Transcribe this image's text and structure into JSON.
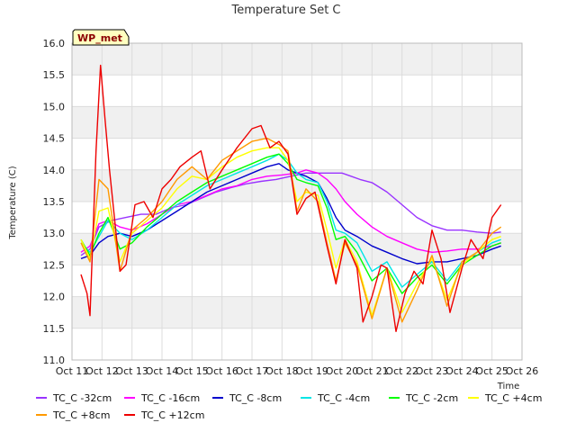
{
  "chart_data": {
    "type": "line",
    "title": "Temperature Set C",
    "xlabel": "Time",
    "ylabel": "Temperature (C)",
    "badge": "WP_met",
    "ylim": [
      11.0,
      16.0
    ],
    "xlim": [
      11,
      26
    ],
    "y_ticks": [
      "11.0",
      "11.5",
      "12.0",
      "12.5",
      "13.0",
      "13.5",
      "14.0",
      "14.5",
      "15.0",
      "15.5",
      "16.0"
    ],
    "x_ticks": [
      "Oct 11",
      "Oct 12",
      "Oct 13",
      "Oct 14",
      "Oct 15",
      "Oct 16",
      "Oct 17",
      "Oct 18",
      "Oct 19",
      "Oct 20",
      "Oct 21",
      "Oct 22",
      "Oct 23",
      "Oct 24",
      "Oct 25",
      "Oct 26"
    ],
    "grid": true,
    "legend_position": "bottom",
    "series": [
      {
        "name": "TC_C -32cm",
        "color": "#9933ff",
        "points": [
          [
            11.3,
            12.65
          ],
          [
            11.6,
            12.75
          ],
          [
            11.9,
            13.1
          ],
          [
            12.3,
            13.2
          ],
          [
            12.8,
            13.25
          ],
          [
            13.3,
            13.3
          ],
          [
            13.8,
            13.3
          ],
          [
            14.3,
            13.4
          ],
          [
            14.8,
            13.45
          ],
          [
            15.3,
            13.55
          ],
          [
            15.8,
            13.65
          ],
          [
            16.3,
            13.72
          ],
          [
            16.8,
            13.78
          ],
          [
            17.3,
            13.82
          ],
          [
            17.8,
            13.85
          ],
          [
            18.3,
            13.9
          ],
          [
            18.8,
            13.95
          ],
          [
            19.2,
            13.95
          ],
          [
            19.6,
            13.95
          ],
          [
            20.0,
            13.95
          ],
          [
            20.3,
            13.9
          ],
          [
            20.6,
            13.85
          ],
          [
            21.0,
            13.8
          ],
          [
            21.5,
            13.65
          ],
          [
            22.0,
            13.45
          ],
          [
            22.5,
            13.25
          ],
          [
            23.0,
            13.12
          ],
          [
            23.5,
            13.05
          ],
          [
            24.0,
            13.05
          ],
          [
            24.5,
            13.02
          ],
          [
            25.0,
            13.0
          ],
          [
            25.3,
            13.02
          ]
        ]
      },
      {
        "name": "TC_C -16cm",
        "color": "#ff00ff",
        "points": [
          [
            11.3,
            12.7
          ],
          [
            11.6,
            12.8
          ],
          [
            11.9,
            13.15
          ],
          [
            12.2,
            13.2
          ],
          [
            12.6,
            13.1
          ],
          [
            13.0,
            13.05
          ],
          [
            13.5,
            13.15
          ],
          [
            14.0,
            13.3
          ],
          [
            14.5,
            13.45
          ],
          [
            15.0,
            13.5
          ],
          [
            15.5,
            13.6
          ],
          [
            16.0,
            13.7
          ],
          [
            16.5,
            13.75
          ],
          [
            17.0,
            13.85
          ],
          [
            17.5,
            13.9
          ],
          [
            18.0,
            13.92
          ],
          [
            18.5,
            13.95
          ],
          [
            18.8,
            14.0
          ],
          [
            19.2,
            13.95
          ],
          [
            19.5,
            13.85
          ],
          [
            19.8,
            13.7
          ],
          [
            20.1,
            13.5
          ],
          [
            20.5,
            13.3
          ],
          [
            21.0,
            13.1
          ],
          [
            21.5,
            12.95
          ],
          [
            22.0,
            12.85
          ],
          [
            22.5,
            12.75
          ],
          [
            23.0,
            12.7
          ],
          [
            23.5,
            12.72
          ],
          [
            24.0,
            12.75
          ],
          [
            24.5,
            12.75
          ],
          [
            25.0,
            12.8
          ],
          [
            25.3,
            12.85
          ]
        ]
      },
      {
        "name": "TC_C -8cm",
        "color": "#0000cc",
        "points": [
          [
            11.3,
            12.6
          ],
          [
            11.6,
            12.65
          ],
          [
            11.9,
            12.85
          ],
          [
            12.2,
            12.95
          ],
          [
            12.6,
            13.0
          ],
          [
            13.0,
            12.95
          ],
          [
            13.5,
            13.05
          ],
          [
            14.0,
            13.2
          ],
          [
            14.5,
            13.35
          ],
          [
            15.0,
            13.5
          ],
          [
            15.5,
            13.65
          ],
          [
            16.0,
            13.75
          ],
          [
            16.5,
            13.85
          ],
          [
            17.0,
            13.95
          ],
          [
            17.5,
            14.05
          ],
          [
            17.9,
            14.1
          ],
          [
            18.2,
            14.0
          ],
          [
            18.5,
            13.95
          ],
          [
            18.8,
            13.9
          ],
          [
            19.2,
            13.8
          ],
          [
            19.5,
            13.55
          ],
          [
            19.8,
            13.25
          ],
          [
            20.1,
            13.05
          ],
          [
            20.5,
            12.95
          ],
          [
            21.0,
            12.8
          ],
          [
            21.5,
            12.7
          ],
          [
            22.0,
            12.6
          ],
          [
            22.5,
            12.52
          ],
          [
            23.0,
            12.55
          ],
          [
            23.5,
            12.55
          ],
          [
            24.0,
            12.6
          ],
          [
            24.5,
            12.65
          ],
          [
            25.0,
            12.75
          ],
          [
            25.3,
            12.8
          ]
        ]
      },
      {
        "name": "TC_C -4cm",
        "color": "#00e5e5",
        "points": [
          [
            11.3,
            12.85
          ],
          [
            11.6,
            12.7
          ],
          [
            11.9,
            12.95
          ],
          [
            12.2,
            13.2
          ],
          [
            12.6,
            13.0
          ],
          [
            13.0,
            12.9
          ],
          [
            13.5,
            13.05
          ],
          [
            14.0,
            13.25
          ],
          [
            14.5,
            13.45
          ],
          [
            15.0,
            13.6
          ],
          [
            15.5,
            13.75
          ],
          [
            16.0,
            13.85
          ],
          [
            16.5,
            13.95
          ],
          [
            17.0,
            14.05
          ],
          [
            17.5,
            14.15
          ],
          [
            17.9,
            14.25
          ],
          [
            18.2,
            14.15
          ],
          [
            18.5,
            13.95
          ],
          [
            18.8,
            13.85
          ],
          [
            19.2,
            13.8
          ],
          [
            19.5,
            13.5
          ],
          [
            19.8,
            13.05
          ],
          [
            20.1,
            13.0
          ],
          [
            20.5,
            12.85
          ],
          [
            21.0,
            12.4
          ],
          [
            21.5,
            12.55
          ],
          [
            22.0,
            12.15
          ],
          [
            22.5,
            12.35
          ],
          [
            23.0,
            12.55
          ],
          [
            23.5,
            12.25
          ],
          [
            24.0,
            12.55
          ],
          [
            24.5,
            12.7
          ],
          [
            25.0,
            12.85
          ],
          [
            25.3,
            12.9
          ]
        ]
      },
      {
        "name": "TC_C -2cm",
        "color": "#00ff00",
        "points": [
          [
            11.3,
            12.9
          ],
          [
            11.6,
            12.65
          ],
          [
            11.9,
            13.0
          ],
          [
            12.2,
            13.25
          ],
          [
            12.6,
            12.75
          ],
          [
            13.0,
            12.85
          ],
          [
            13.5,
            13.1
          ],
          [
            14.0,
            13.3
          ],
          [
            14.5,
            13.5
          ],
          [
            15.0,
            13.65
          ],
          [
            15.5,
            13.8
          ],
          [
            16.0,
            13.9
          ],
          [
            16.5,
            14.0
          ],
          [
            17.0,
            14.1
          ],
          [
            17.5,
            14.2
          ],
          [
            17.9,
            14.25
          ],
          [
            18.2,
            14.1
          ],
          [
            18.5,
            13.85
          ],
          [
            18.8,
            13.8
          ],
          [
            19.2,
            13.75
          ],
          [
            19.5,
            13.4
          ],
          [
            19.8,
            12.9
          ],
          [
            20.1,
            12.95
          ],
          [
            20.5,
            12.7
          ],
          [
            21.0,
            12.25
          ],
          [
            21.5,
            12.45
          ],
          [
            22.0,
            12.05
          ],
          [
            22.5,
            12.3
          ],
          [
            23.0,
            12.5
          ],
          [
            23.5,
            12.2
          ],
          [
            24.0,
            12.5
          ],
          [
            24.5,
            12.65
          ],
          [
            25.0,
            12.8
          ],
          [
            25.3,
            12.85
          ]
        ]
      },
      {
        "name": "TC_C +4cm",
        "color": "#ffff00",
        "points": [
          [
            11.3,
            12.9
          ],
          [
            11.6,
            12.6
          ],
          [
            11.9,
            13.35
          ],
          [
            12.2,
            13.4
          ],
          [
            12.6,
            12.55
          ],
          [
            13.0,
            13.0
          ],
          [
            13.5,
            13.2
          ],
          [
            14.0,
            13.4
          ],
          [
            14.5,
            13.7
          ],
          [
            15.0,
            13.9
          ],
          [
            15.5,
            13.85
          ],
          [
            16.0,
            14.05
          ],
          [
            16.5,
            14.2
          ],
          [
            17.0,
            14.3
          ],
          [
            17.5,
            14.35
          ],
          [
            17.9,
            14.35
          ],
          [
            18.2,
            14.15
          ],
          [
            18.5,
            13.5
          ],
          [
            18.8,
            13.65
          ],
          [
            19.2,
            13.6
          ],
          [
            19.5,
            13.05
          ],
          [
            19.8,
            12.45
          ],
          [
            20.1,
            12.9
          ],
          [
            20.5,
            12.55
          ],
          [
            21.0,
            11.7
          ],
          [
            21.5,
            12.45
          ],
          [
            22.0,
            11.75
          ],
          [
            22.5,
            12.2
          ],
          [
            23.0,
            12.6
          ],
          [
            23.5,
            11.95
          ],
          [
            24.0,
            12.5
          ],
          [
            24.5,
            12.7
          ],
          [
            25.0,
            12.9
          ],
          [
            25.3,
            12.95
          ]
        ]
      },
      {
        "name": "TC_C +8cm",
        "color": "#ff9900",
        "points": [
          [
            11.3,
            12.85
          ],
          [
            11.6,
            12.55
          ],
          [
            11.9,
            13.85
          ],
          [
            12.2,
            13.7
          ],
          [
            12.6,
            12.4
          ],
          [
            13.0,
            13.05
          ],
          [
            13.5,
            13.25
          ],
          [
            14.0,
            13.5
          ],
          [
            14.5,
            13.85
          ],
          [
            15.0,
            14.05
          ],
          [
            15.5,
            13.85
          ],
          [
            16.0,
            14.15
          ],
          [
            16.5,
            14.3
          ],
          [
            17.0,
            14.45
          ],
          [
            17.5,
            14.5
          ],
          [
            17.9,
            14.4
          ],
          [
            18.2,
            14.3
          ],
          [
            18.5,
            13.35
          ],
          [
            18.8,
            13.7
          ],
          [
            19.2,
            13.5
          ],
          [
            19.5,
            12.85
          ],
          [
            19.8,
            12.25
          ],
          [
            20.1,
            12.85
          ],
          [
            20.5,
            12.5
          ],
          [
            21.0,
            11.65
          ],
          [
            21.5,
            12.45
          ],
          [
            22.0,
            11.6
          ],
          [
            22.5,
            12.1
          ],
          [
            23.0,
            12.65
          ],
          [
            23.5,
            11.85
          ],
          [
            24.0,
            12.55
          ],
          [
            24.5,
            12.7
          ],
          [
            25.0,
            13.0
          ],
          [
            25.3,
            13.1
          ]
        ]
      },
      {
        "name": "TC_C +12cm",
        "color": "#ee0000",
        "points": [
          [
            11.3,
            12.35
          ],
          [
            11.5,
            12.05
          ],
          [
            11.6,
            11.7
          ],
          [
            11.8,
            14.3
          ],
          [
            11.95,
            15.65
          ],
          [
            12.1,
            14.8
          ],
          [
            12.25,
            14.0
          ],
          [
            12.6,
            12.4
          ],
          [
            12.8,
            12.5
          ],
          [
            13.1,
            13.45
          ],
          [
            13.4,
            13.5
          ],
          [
            13.7,
            13.25
          ],
          [
            14.0,
            13.7
          ],
          [
            14.3,
            13.85
          ],
          [
            14.6,
            14.05
          ],
          [
            15.0,
            14.2
          ],
          [
            15.3,
            14.3
          ],
          [
            15.6,
            13.7
          ],
          [
            16.0,
            14.0
          ],
          [
            16.5,
            14.35
          ],
          [
            17.0,
            14.65
          ],
          [
            17.3,
            14.7
          ],
          [
            17.6,
            14.35
          ],
          [
            17.9,
            14.45
          ],
          [
            18.2,
            14.25
          ],
          [
            18.5,
            13.3
          ],
          [
            18.8,
            13.55
          ],
          [
            19.1,
            13.65
          ],
          [
            19.5,
            12.8
          ],
          [
            19.8,
            12.2
          ],
          [
            20.1,
            12.9
          ],
          [
            20.5,
            12.45
          ],
          [
            20.7,
            11.6
          ],
          [
            21.0,
            12.0
          ],
          [
            21.3,
            12.5
          ],
          [
            21.5,
            12.45
          ],
          [
            21.8,
            11.45
          ],
          [
            22.1,
            12.05
          ],
          [
            22.4,
            12.4
          ],
          [
            22.7,
            12.2
          ],
          [
            23.0,
            13.05
          ],
          [
            23.3,
            12.6
          ],
          [
            23.6,
            11.75
          ],
          [
            24.0,
            12.45
          ],
          [
            24.3,
            12.9
          ],
          [
            24.7,
            12.6
          ],
          [
            25.0,
            13.25
          ],
          [
            25.3,
            13.45
          ]
        ]
      }
    ]
  }
}
